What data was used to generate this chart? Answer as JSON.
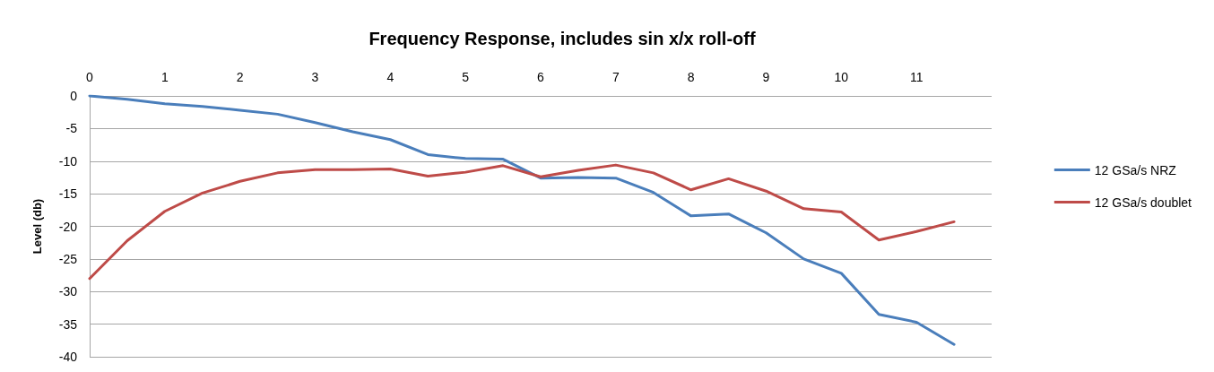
{
  "chart_data": {
    "type": "line",
    "title": "Frequency Response, includes sin x/x roll-off",
    "ylabel": "Level (db)",
    "x": [
      0,
      0.5,
      1,
      1.5,
      2,
      2.5,
      3,
      3.5,
      4,
      4.5,
      5,
      5.5,
      6,
      6.5,
      7,
      7.5,
      8,
      8.5,
      9,
      9.5,
      10,
      10.5,
      11,
      11.5
    ],
    "xlim": [
      0,
      12
    ],
    "xticks": [
      0,
      1,
      2,
      3,
      4,
      5,
      6,
      7,
      8,
      9,
      10,
      11
    ],
    "ylim": [
      -40,
      0
    ],
    "yticks": [
      -40,
      -35,
      -30,
      -25,
      -20,
      -15,
      -10,
      -5,
      0
    ],
    "grid": "y",
    "legend": "right",
    "marker": "none",
    "line_style": "solid",
    "series": [
      {
        "name": "12 GSa/s NRZ",
        "color": "#4a7ebb",
        "values": [
          0,
          -0.5,
          -1.2,
          -1.6,
          -2.2,
          -2.8,
          -4.1,
          -5.5,
          -6.7,
          -9,
          -9.6,
          -9.7,
          -12.6,
          -12.5,
          -12.6,
          -14.8,
          -18.4,
          -18.1,
          -21,
          -25,
          -27.2,
          -33.5,
          -34.7,
          -38.1
        ]
      },
      {
        "name": "12 GSa/s doublet",
        "color": "#be4b48",
        "values": [
          -28,
          -22.2,
          -17.7,
          -14.9,
          -13.1,
          -11.8,
          -11.3,
          -11.3,
          -11.2,
          -12.3,
          -11.7,
          -10.7,
          -12.4,
          -11.4,
          -10.6,
          -11.8,
          -14.4,
          -12.7,
          -14.6,
          -17.3,
          -17.8,
          -22.1,
          -20.8,
          -19.3
        ]
      }
    ]
  }
}
